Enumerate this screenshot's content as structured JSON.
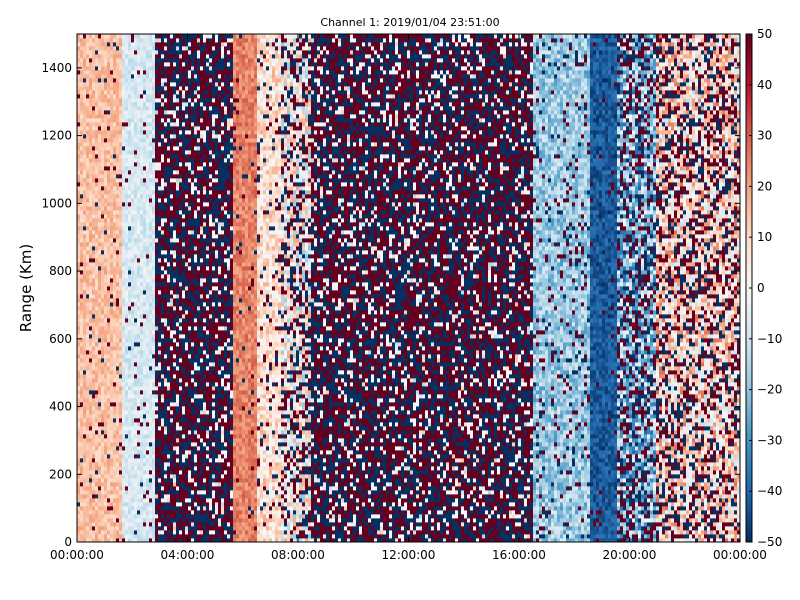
{
  "chart_data": {
    "type": "heatmap",
    "title": "Channel 1: 2019/01/04 23:51:00",
    "xlabel": "",
    "ylabel": "Range (Km)",
    "xlim": [
      0,
      24
    ],
    "ylim": [
      0,
      1500
    ],
    "x_tick_labels": [
      {
        "value": 0,
        "label": "00:00:00"
      },
      {
        "value": 4,
        "label": "04:00:00"
      },
      {
        "value": 8,
        "label": "08:00:00"
      },
      {
        "value": 12,
        "label": "12:00:00"
      },
      {
        "value": 16,
        "label": "16:00:00"
      },
      {
        "value": 20,
        "label": "20:00:00"
      },
      {
        "value": 24,
        "label": "00:00:00"
      }
    ],
    "y_ticks": [
      0,
      200,
      400,
      600,
      800,
      1000,
      1200,
      1400
    ],
    "colorbar": {
      "colormap": "RdBu_r",
      "vmin": -50,
      "vmax": 50,
      "ticks": [
        -50,
        -40,
        -30,
        -20,
        -10,
        0,
        10,
        20,
        30,
        40,
        50
      ],
      "low_color": "#053061",
      "mid_color": "#f7f7f7",
      "high_color": "#67001f"
    },
    "grid": false,
    "bands": [
      {
        "x_start": 0.0,
        "x_end": 1.6,
        "mean": 15,
        "noise": "low"
      },
      {
        "x_start": 1.6,
        "x_end": 2.8,
        "mean": -8,
        "noise": "low"
      },
      {
        "x_start": 2.8,
        "x_end": 5.7,
        "mean": 0,
        "noise": "extreme"
      },
      {
        "x_start": 5.7,
        "x_end": 6.5,
        "mean": 25,
        "noise": "low"
      },
      {
        "x_start": 6.5,
        "x_end": 7.4,
        "mean": 8,
        "noise": "medium"
      },
      {
        "x_start": 7.4,
        "x_end": 8.5,
        "mean": 0,
        "noise": "high"
      },
      {
        "x_start": 8.5,
        "x_end": 16.5,
        "mean": 0,
        "noise": "extreme"
      },
      {
        "x_start": 16.5,
        "x_end": 18.6,
        "mean": -18,
        "noise": "medium"
      },
      {
        "x_start": 18.6,
        "x_end": 19.6,
        "mean": -42,
        "noise": "low"
      },
      {
        "x_start": 19.6,
        "x_end": 21.0,
        "mean": -20,
        "noise": "high"
      },
      {
        "x_start": 21.0,
        "x_end": 24.0,
        "mean": 8,
        "noise": "high"
      }
    ]
  }
}
